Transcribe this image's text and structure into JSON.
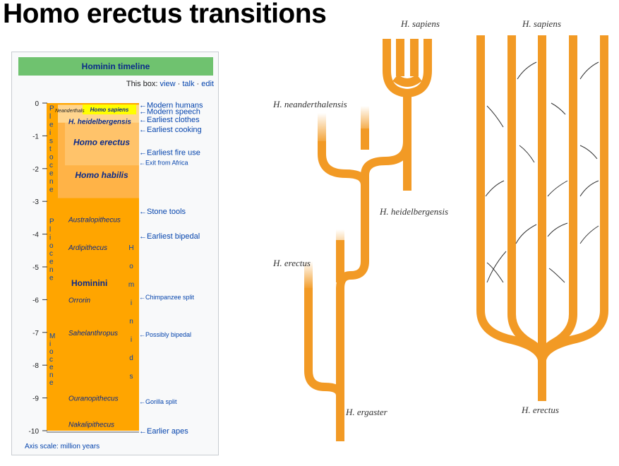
{
  "title": "Homo erectus transitions",
  "timeline": {
    "header": "Hominin timeline",
    "nav_prefix": "This box:",
    "nav_links": [
      "view",
      "talk",
      "edit"
    ],
    "axis_note": "Axis scale: million years",
    "axis_ticks": [
      "0",
      "-1",
      "-2",
      "-3",
      "-4",
      "-5",
      "-6",
      "-7",
      "-8",
      "-9",
      "-10"
    ],
    "epochs": [
      {
        "name": "Pleistocene",
        "letters": [
          "P",
          "l",
          "e",
          "i",
          "s",
          "t",
          "o",
          "c",
          "e",
          "n",
          "e"
        ],
        "mya": [
          0.05,
          2.7
        ]
      },
      {
        "name": "Pliocene",
        "letters": [
          "P",
          "l",
          "i",
          "o",
          "c",
          "e",
          "n",
          "e"
        ],
        "mya": [
          3.5,
          5.4
        ]
      },
      {
        "name": "Miocene",
        "letters": [
          "M",
          "i",
          "o",
          "c",
          "e",
          "n",
          "e"
        ],
        "mya": [
          7.0,
          8.6
        ]
      }
    ],
    "group_label": "Hominids",
    "group_letters": [
      "H",
      "o",
      "m",
      "i",
      "n",
      "i",
      "d",
      "s"
    ],
    "species": [
      {
        "label": "Neanderthals",
        "mya": 0.18
      },
      {
        "label": "Homo sapiens",
        "mya": 0.14
      },
      {
        "label": "H. heidelbergensis",
        "mya": 0.55
      },
      {
        "label": "Homo erectus",
        "mya": 1.2
      },
      {
        "label": "Homo habilis",
        "mya": 2.2
      },
      {
        "label": "Australopithecus",
        "mya": 3.55
      },
      {
        "label": "Ardipithecus",
        "mya": 4.4
      },
      {
        "label": "Hominini",
        "mya": 5.5
      },
      {
        "label": "Orrorin",
        "mya": 6.0
      },
      {
        "label": "Sahelanthropus",
        "mya": 7.0
      },
      {
        "label": "Ouranopithecus",
        "mya": 9.0
      },
      {
        "label": "Nakalipithecus",
        "mya": 9.8
      }
    ],
    "events": [
      {
        "label": "Modern humans",
        "mya": 0.05,
        "size": "large"
      },
      {
        "label": "Modern speech",
        "mya": 0.25,
        "size": "large"
      },
      {
        "label": "Earliest clothes",
        "mya": 0.5,
        "size": "large"
      },
      {
        "label": "Earliest cooking",
        "mya": 0.8,
        "size": "large"
      },
      {
        "label": "Earliest fire use",
        "mya": 1.5,
        "size": "large"
      },
      {
        "label": "Exit from Africa",
        "mya": 1.8,
        "size": "small"
      },
      {
        "label": "Stone tools",
        "mya": 3.3,
        "size": "large"
      },
      {
        "label": "Earliest bipedal",
        "mya": 4.05,
        "size": "large"
      },
      {
        "label": "Chimpanzee split",
        "mya": 5.9,
        "size": "small"
      },
      {
        "label": "Possibly bipedal",
        "mya": 7.05,
        "size": "small"
      },
      {
        "label": "Gorilla split",
        "mya": 9.1,
        "size": "small"
      },
      {
        "label": "Earlier apes",
        "mya": 10.0,
        "size": "large"
      }
    ]
  },
  "tree_left": {
    "labels": {
      "sapiens": "H. sapiens",
      "neanderthalensis": "H. neanderthalensis",
      "heidelbergensis": "H. heidelbergensis",
      "erectus": "H. erectus",
      "ergaster": "H. ergaster"
    }
  },
  "tree_right": {
    "labels": {
      "sapiens": "H. sapiens",
      "erectus": "H. erectus"
    }
  },
  "colors": {
    "branch": "#f29a25",
    "timeline_fill": "#ffa500",
    "header_bg": "#6fc26f",
    "link": "#0645ad",
    "homo_sapiens_bg": "#ffff00"
  }
}
